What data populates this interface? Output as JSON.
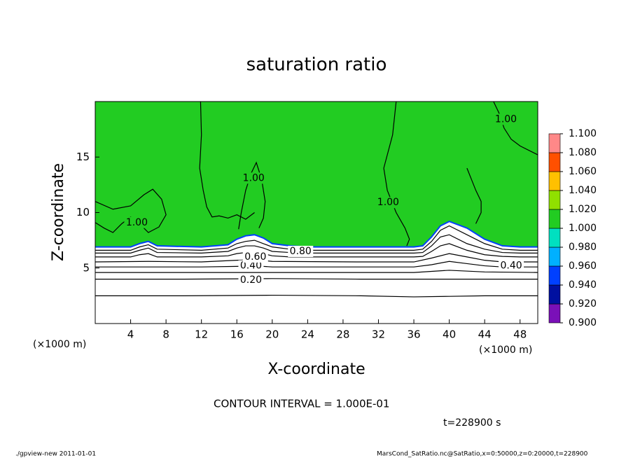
{
  "chart_data": {
    "type": "contour",
    "title": "saturation ratio",
    "x_label": "X-coordinate",
    "y_label": "Z-coordinate",
    "x_unit": "(×1000 m)",
    "xlim": [
      0,
      50
    ],
    "xticks": [
      4,
      8,
      12,
      16,
      20,
      24,
      28,
      32,
      36,
      40,
      44,
      48
    ],
    "ylim": [
      0,
      20
    ],
    "yticks": [
      5,
      10,
      15
    ],
    "colorbar": {
      "levels": [
        {
          "value": 0.9,
          "label": "0.900"
        },
        {
          "value": 0.92,
          "label": "0.920"
        },
        {
          "value": 0.94,
          "label": "0.940"
        },
        {
          "value": 0.96,
          "label": "0.960"
        },
        {
          "value": 0.98,
          "label": "0.980"
        },
        {
          "value": 1.0,
          "label": "1.000"
        },
        {
          "value": 1.02,
          "label": "1.020"
        },
        {
          "value": 1.04,
          "label": "1.040"
        },
        {
          "value": 1.06,
          "label": "1.060"
        },
        {
          "value": 1.08,
          "label": "1.080"
        },
        {
          "value": 1.1,
          "label": "1.100"
        }
      ],
      "colors": [
        "#7a10b8",
        "#0010a0",
        "#0040ff",
        "#00b0ff",
        "#00e0c0",
        "#22cc22",
        "#90e000",
        "#ffc000",
        "#ff5000",
        "#ff8888"
      ]
    },
    "shade_boundary": {
      "x": [
        0,
        4,
        5,
        6,
        7,
        12,
        15,
        16,
        17,
        18,
        19,
        20,
        22,
        24,
        30,
        36,
        37,
        38,
        39,
        40,
        42,
        44,
        46,
        48,
        50
      ],
      "z": [
        6.9,
        6.9,
        7.2,
        7.4,
        7.0,
        6.9,
        7.1,
        7.6,
        7.9,
        8.0,
        7.7,
        7.2,
        7.0,
        6.9,
        6.9,
        6.9,
        7.0,
        7.8,
        8.8,
        9.2,
        8.6,
        7.6,
        7.0,
        6.9,
        6.9
      ]
    },
    "contours": [
      {
        "x": [
          0,
          4,
          5,
          6,
          7,
          12,
          15,
          16,
          17,
          18,
          19,
          20,
          22,
          24,
          30,
          36,
          37,
          38,
          39,
          40,
          42,
          44,
          46,
          48,
          50
        ],
        "z": [
          6.6,
          6.6,
          6.9,
          7.1,
          6.7,
          6.6,
          6.8,
          7.2,
          7.4,
          7.5,
          7.2,
          6.9,
          6.7,
          6.6,
          6.6,
          6.6,
          6.7,
          7.4,
          8.4,
          8.8,
          8.0,
          7.2,
          6.7,
          6.6,
          6.6
        ]
      },
      {
        "x": [
          0,
          4,
          5,
          6,
          7,
          12,
          15,
          16,
          17,
          18,
          19,
          20,
          22,
          24,
          30,
          36,
          37,
          38,
          39,
          40,
          42,
          44,
          46,
          48,
          50
        ],
        "z": [
          6.35,
          6.35,
          6.6,
          6.8,
          6.4,
          6.35,
          6.5,
          6.8,
          7.0,
          7.0,
          6.8,
          6.5,
          6.4,
          6.35,
          6.35,
          6.35,
          6.4,
          7.0,
          7.8,
          8.0,
          7.2,
          6.7,
          6.4,
          6.35,
          6.35
        ]
      },
      {
        "x": [
          0,
          4,
          5,
          6,
          7,
          12,
          15,
          16,
          17,
          18,
          19,
          20,
          22,
          24,
          30,
          36,
          37,
          38,
          39,
          40,
          42,
          44,
          46,
          48,
          50
        ],
        "z": [
          6.0,
          6.0,
          6.2,
          6.3,
          6.0,
          6.0,
          6.1,
          6.3,
          6.4,
          6.4,
          6.3,
          6.1,
          6.0,
          6.0,
          6.0,
          6.0,
          6.05,
          6.5,
          7.0,
          7.2,
          6.6,
          6.2,
          6.05,
          6.0,
          6.0
        ]
      },
      {
        "x": [
          0,
          6,
          12,
          16,
          18,
          20,
          30,
          36,
          38,
          40,
          42,
          44,
          46,
          50
        ],
        "z": [
          5.55,
          5.6,
          5.55,
          5.7,
          5.75,
          5.6,
          5.55,
          5.55,
          5.9,
          6.3,
          6.0,
          5.7,
          5.55,
          5.55
        ]
      },
      {
        "x": [
          0,
          6,
          12,
          16,
          18,
          20,
          30,
          36,
          38,
          40,
          42,
          44,
          46,
          50
        ],
        "z": [
          5.1,
          5.1,
          5.1,
          5.15,
          5.2,
          5.1,
          5.1,
          5.1,
          5.3,
          5.6,
          5.4,
          5.2,
          5.1,
          5.1
        ]
      },
      {
        "x": [
          0,
          10,
          20,
          30,
          36,
          40,
          44,
          50
        ],
        "z": [
          4.6,
          4.6,
          4.6,
          4.6,
          4.6,
          4.8,
          4.65,
          4.6
        ]
      },
      {
        "x": [
          0,
          10,
          20,
          30,
          40,
          50
        ],
        "z": [
          4.0,
          4.0,
          4.05,
          4.0,
          4.0,
          4.0
        ]
      },
      {
        "x": [
          0,
          10,
          20,
          30,
          36,
          40,
          44,
          50
        ],
        "z": [
          2.5,
          2.5,
          2.55,
          2.5,
          2.4,
          2.45,
          2.5,
          2.5
        ]
      },
      {
        "x": [
          0,
          2,
          4,
          5.5,
          6.5,
          7.5,
          8,
          7.2,
          6,
          5,
          4,
          3,
          2,
          1,
          0
        ],
        "z": [
          11,
          10.3,
          10.6,
          11.6,
          12.1,
          11.2,
          9.8,
          8.7,
          8.2,
          9.0,
          9.6,
          9.0,
          8.2,
          8.6,
          9.1
        ]
      },
      {
        "x": [
          11.9,
          12,
          11.8,
          12.2,
          12.6,
          13.2,
          14,
          15,
          16,
          17,
          18
        ],
        "z": [
          20,
          17,
          14,
          12,
          10.5,
          9.6,
          9.7,
          9.5,
          9.8,
          9.4,
          10
        ]
      },
      {
        "x": [
          16.2,
          16.5,
          17,
          17.6,
          18.2,
          18.8,
          19.2,
          19.0,
          18.5
        ],
        "z": [
          8.5,
          10,
          12,
          13.5,
          14.5,
          13,
          11,
          9.5,
          8.6
        ]
      },
      {
        "x": [
          34,
          33.6,
          32.6,
          33,
          34,
          35,
          35.5,
          35.2
        ],
        "z": [
          20,
          17,
          14,
          12,
          10,
          8.6,
          7.6,
          7.0
        ]
      },
      {
        "x": [
          42,
          42.5,
          43,
          43.6,
          43.6,
          43
        ],
        "z": [
          14,
          13,
          12,
          11,
          10,
          9
        ]
      },
      {
        "x": [
          45,
          45.6,
          46.2,
          47,
          48,
          50
        ],
        "z": [
          20,
          19,
          17.6,
          16.6,
          16,
          15.2
        ]
      }
    ],
    "contour_labels": [
      {
        "text": "0.20",
        "x": 17.6,
        "z": 3.9
      },
      {
        "text": "0.40",
        "x": 17.6,
        "z": 5.2
      },
      {
        "text": "0.60",
        "x": 18.1,
        "z": 6.0
      },
      {
        "text": "0.80",
        "x": 23.2,
        "z": 6.5
      },
      {
        "text": "0.40",
        "x": 47.0,
        "z": 5.2
      },
      {
        "text": "1.00",
        "x": 4.7,
        "z": 9.1
      },
      {
        "text": "1.00",
        "x": 17.9,
        "z": 13.1
      },
      {
        "text": "1.00",
        "x": 33.1,
        "z": 10.9
      },
      {
        "text": "1.00",
        "x": 46.4,
        "z": 18.4
      }
    ],
    "contour_interval_text": "CONTOUR INTERVAL = 1.000E-01",
    "time_text": "t=228900 s",
    "footer_left": "./gpview-new  2011-01-01",
    "footer_right": "MarsCond_SatRatio.nc@SatRatio,x=0:50000,z=0:20000,t=228900"
  }
}
